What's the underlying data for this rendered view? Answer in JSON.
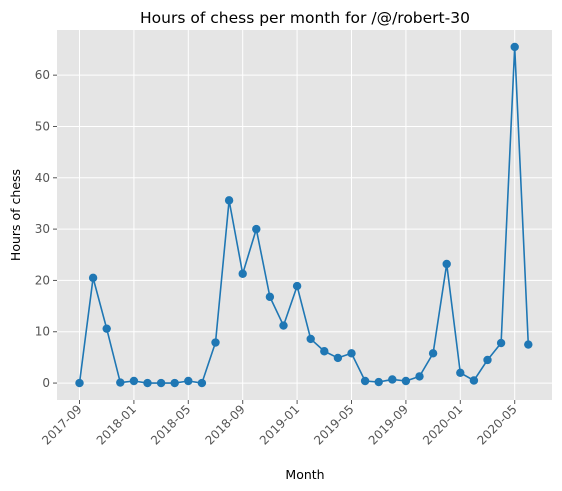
{
  "chart_data": {
    "type": "line",
    "title": "Hours of chess per month for /@/robert-30",
    "xlabel": "Month",
    "ylabel": "Hours of chess",
    "ylim": [
      -3.3,
      68.8
    ],
    "yticks": [
      0,
      10,
      20,
      30,
      40,
      50,
      60
    ],
    "xticks": [
      "2017-09",
      "2018-01",
      "2018-05",
      "2018-09",
      "2019-01",
      "2019-05",
      "2019-09",
      "2020-01",
      "2020-05"
    ],
    "grid": true,
    "markers": true,
    "style": "ggplot",
    "colors": {
      "line": "#1f77b4",
      "background": "#e5e5e5",
      "grid": "#ffffff"
    },
    "series": [
      {
        "x": [
          "2017-09",
          "2017-10",
          "2017-11",
          "2017-12",
          "2018-01",
          "2018-02",
          "2018-03",
          "2018-04",
          "2018-05",
          "2018-06",
          "2018-07",
          "2018-08",
          "2018-09",
          "2018-10",
          "2018-11",
          "2018-12",
          "2019-01",
          "2019-02",
          "2019-03",
          "2019-04",
          "2019-05",
          "2019-06",
          "2019-07",
          "2019-08",
          "2019-09",
          "2019-10",
          "2019-11",
          "2019-12",
          "2020-01",
          "2020-02",
          "2020-03",
          "2020-04",
          "2020-05",
          "2020-06"
        ],
        "values": [
          0.0,
          20.5,
          10.6,
          0.1,
          0.4,
          0.0,
          0.0,
          0.0,
          0.4,
          0.0,
          7.9,
          35.6,
          21.3,
          30.0,
          16.8,
          11.2,
          18.9,
          8.6,
          6.2,
          4.9,
          5.8,
          0.4,
          0.2,
          0.7,
          0.4,
          1.3,
          5.8,
          23.2,
          2.0,
          0.5,
          4.5,
          7.8,
          65.5,
          7.5
        ]
      }
    ]
  }
}
